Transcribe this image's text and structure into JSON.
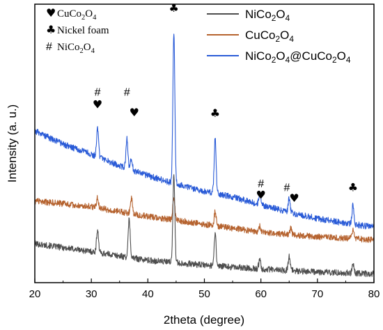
{
  "chart_data": {
    "type": "line",
    "title": "",
    "xlabel": "2theta (degree)",
    "ylabel": "Intensity (a. u.)",
    "xlim": [
      20,
      80
    ],
    "xticks": [
      "20",
      "30",
      "40",
      "50",
      "60",
      "70",
      "80"
    ],
    "y_ticks_shown": false,
    "grid": false,
    "legend_position": "top-right",
    "series": [
      {
        "name": "NiCo2O4",
        "name_parts": [
          {
            "t": "NiCo",
            "sub": false
          },
          {
            "t": "2",
            "sub": true
          },
          {
            "t": "O",
            "sub": false
          },
          {
            "t": "4",
            "sub": true
          }
        ],
        "color": "#4d4d4d",
        "baseline": [
          [
            20,
            0.2
          ],
          [
            30,
            0.16
          ],
          [
            40,
            0.115
          ],
          [
            50,
            0.09
          ],
          [
            60,
            0.07
          ],
          [
            70,
            0.055
          ],
          [
            80,
            0.045
          ]
        ],
        "peaks": [
          [
            31.1,
            0.12
          ],
          [
            36.7,
            0.2
          ],
          [
            44.6,
            0.45
          ],
          [
            51.9,
            0.17
          ],
          [
            59.8,
            0.05
          ],
          [
            65.0,
            0.07
          ],
          [
            76.3,
            0.05
          ]
        ]
      },
      {
        "name": "CuCo2O4",
        "name_parts": [
          {
            "t": "CuCo",
            "sub": false
          },
          {
            "t": "2",
            "sub": true
          },
          {
            "t": "O",
            "sub": false
          },
          {
            "t": "4",
            "sub": true
          }
        ],
        "color": "#b5622e",
        "baseline": [
          [
            20,
            0.42
          ],
          [
            30,
            0.39
          ],
          [
            40,
            0.34
          ],
          [
            50,
            0.3
          ],
          [
            60,
            0.26
          ],
          [
            70,
            0.235
          ],
          [
            80,
            0.22
          ]
        ],
        "peaks": [
          [
            31.1,
            0.05
          ],
          [
            37.1,
            0.08
          ],
          [
            44.6,
            0.12
          ],
          [
            51.9,
            0.07
          ],
          [
            59.8,
            0.03
          ],
          [
            65.3,
            0.03
          ],
          [
            76.3,
            0.04
          ]
        ]
      },
      {
        "name": "NiCo2O4@CuCo2O4",
        "name_parts": [
          {
            "t": "NiCo",
            "sub": false
          },
          {
            "t": "2",
            "sub": true
          },
          {
            "t": "O",
            "sub": false
          },
          {
            "t": "4",
            "sub": true
          },
          {
            "t": "@CuCo",
            "sub": false
          },
          {
            "t": "2",
            "sub": true
          },
          {
            "t": "O",
            "sub": false
          },
          {
            "t": "4",
            "sub": true
          }
        ],
        "color": "#2a5bd7",
        "baseline": [
          [
            20,
            0.78
          ],
          [
            25,
            0.71
          ],
          [
            30,
            0.66
          ],
          [
            35,
            0.6
          ],
          [
            40,
            0.55
          ],
          [
            45,
            0.505
          ],
          [
            50,
            0.47
          ],
          [
            55,
            0.44
          ],
          [
            60,
            0.4
          ],
          [
            65,
            0.36
          ],
          [
            70,
            0.33
          ],
          [
            75,
            0.305
          ],
          [
            80,
            0.285
          ]
        ],
        "peaks": [
          [
            31.1,
            0.14
          ],
          [
            36.3,
            0.15
          ],
          [
            37.1,
            0.06
          ],
          [
            44.6,
            0.78
          ],
          [
            51.9,
            0.28
          ],
          [
            59.8,
            0.06
          ],
          [
            65.0,
            0.07
          ],
          [
            76.3,
            0.1
          ]
        ]
      }
    ],
    "peak_key": [
      {
        "symbol": "♥",
        "label_parts": [
          {
            "t": "CuCo",
            "sub": false
          },
          {
            "t": "2",
            "sub": true
          },
          {
            "t": "O",
            "sub": false
          },
          {
            "t": "4",
            "sub": true
          }
        ]
      },
      {
        "symbol": "♣",
        "label_parts": [
          {
            "t": "Nickel foam",
            "sub": false
          }
        ]
      },
      {
        "symbol": "#",
        "label_parts": [
          {
            "t": "NiCo",
            "sub": false
          },
          {
            "t": "2",
            "sub": true
          },
          {
            "t": "O",
            "sub": false
          },
          {
            "t": "4",
            "sub": true
          }
        ]
      }
    ],
    "annotations": [
      {
        "symbol": "#",
        "x": 31.1,
        "level": 0.96
      },
      {
        "symbol": "♥",
        "x": 31.1,
        "level": 0.895
      },
      {
        "symbol": "#",
        "x": 36.3,
        "level": 0.96
      },
      {
        "symbol": "♥",
        "x": 37.6,
        "level": 0.855
      },
      {
        "symbol": "♣",
        "x": 44.6,
        "level": 1.39
      },
      {
        "symbol": "♣",
        "x": 51.9,
        "level": 0.85
      },
      {
        "symbol": "#",
        "x": 60.0,
        "level": 0.49
      },
      {
        "symbol": "♥",
        "x": 60.0,
        "level": 0.43
      },
      {
        "symbol": "#",
        "x": 64.6,
        "level": 0.47
      },
      {
        "symbol": "♥",
        "x": 65.9,
        "level": 0.415
      },
      {
        "symbol": "♣",
        "x": 76.3,
        "level": 0.47
      }
    ]
  }
}
